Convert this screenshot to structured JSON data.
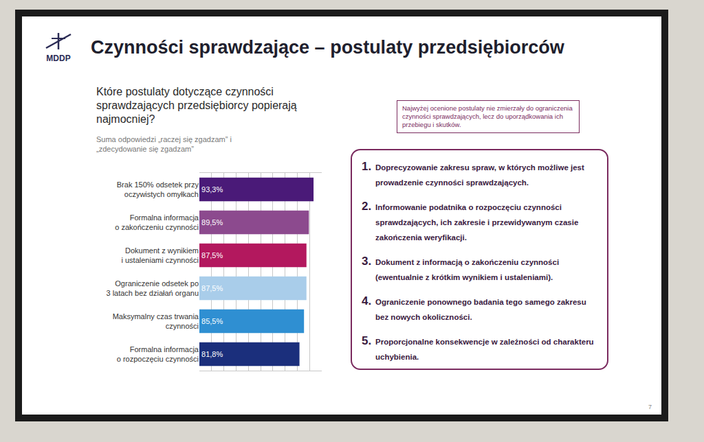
{
  "slide": {
    "logo": "MDDP",
    "title": "Czynności sprawdzające – postulaty przedsiębiorców",
    "question": "Które postulaty dotyczące czynności sprawdzających przedsiębiorcy popierają najmocniej?",
    "note": "Najwyżej ocenione postulaty nie zmierzały do ograniczenia czynności sprawdzających, lecz do uporządkowania ich przebiegu i skutków.",
    "list": [
      {
        "number": "1.",
        "text": "Doprecyzowanie zakresu spraw, w których możliwe jest prowadzenie czynności sprawdzających."
      },
      {
        "number": "2.",
        "text": "Informowanie podatnika o rozpoczęciu czynności sprawdzających, ich zakresie i przewidywanym czasie zakończenia weryfikacji."
      },
      {
        "number": "3.",
        "text": "Dokument z informacją o zakończeniu czynności (ewentualnie z krótkim wynikiem i ustaleniami)."
      },
      {
        "number": "4.",
        "text": "Ograniczenie ponownego badania tego samego zakresu bez nowych okoliczności."
      },
      {
        "number": "5.",
        "text": "Proporcjonalne konsekwencje w zależności od charakteru uchybienia."
      }
    ],
    "page": "7"
  },
  "chart_data": {
    "type": "bar",
    "subtitle": "Suma odpowiedzi „raczej się zgadzam” i „zdecydowanie się zgadzam”",
    "orientation": "horizontal",
    "categories": [
      "Brak 150% odsetek przy\noczywistych omyłkach",
      "Formalna informacja\no zakończeniu czynności",
      "Dokument z wynikiem\ni ustaleniami czynności",
      "Ograniczenie odsetek po\n3 latach bez działań organu",
      "Maksymalny czas trwania\nczynności",
      "Formalna informacja\no rozpoczęciu czynności"
    ],
    "values": [
      93.3,
      89.5,
      87.5,
      87.5,
      85.5,
      81.8
    ],
    "value_labels": [
      "93,3%",
      "89,5%",
      "87,5%",
      "87,5%",
      "85,5%",
      "81,8%"
    ],
    "colors": [
      "#4a1a78",
      "#8c4a8e",
      "#b3185e",
      "#a9cdea",
      "#2f8fd2",
      "#1b2f7c"
    ],
    "xlim": [
      0,
      100
    ],
    "xticks": [
      0,
      10,
      20,
      30,
      40,
      50,
      60,
      70,
      80,
      90,
      100
    ],
    "grid": true,
    "data_labels": true,
    "tick_labels": "y"
  }
}
